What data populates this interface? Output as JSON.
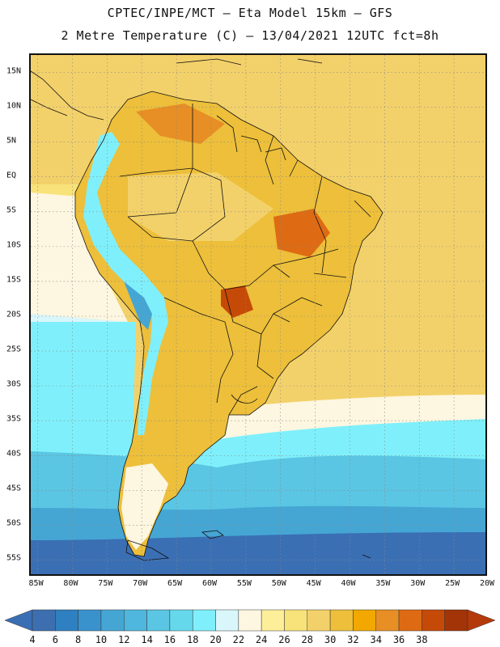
{
  "title": {
    "line1": "CPTEC/INPE/MCT –  Eta Model 15km – GFS",
    "line2": "2 Metre Temperature (C) – 13/04/2021 12UTC fct=8h"
  },
  "lat_labels": [
    "15N",
    "10N",
    "5N",
    "EQ",
    "5S",
    "10S",
    "15S",
    "20S",
    "25S",
    "30S",
    "35S",
    "40S",
    "45S",
    "50S",
    "55S"
  ],
  "lat_values": [
    15,
    10,
    5,
    0,
    -5,
    -10,
    -15,
    -20,
    -25,
    -30,
    -35,
    -40,
    -45,
    -50,
    -55
  ],
  "lon_labels": [
    "85W",
    "80W",
    "75W",
    "70W",
    "65W",
    "60W",
    "55W",
    "50W",
    "45W",
    "40W",
    "35W",
    "30W",
    "25W",
    "20W"
  ],
  "lon_values": [
    -85,
    -80,
    -75,
    -70,
    -65,
    -60,
    -55,
    -50,
    -45,
    -40,
    -35,
    -30,
    -25,
    -20
  ],
  "colorbar": {
    "labels": [
      "4",
      "6",
      "8",
      "10",
      "12",
      "14",
      "16",
      "18",
      "20",
      "22",
      "24",
      "26",
      "28",
      "30",
      "32",
      "34",
      "36",
      "38"
    ],
    "colors": [
      "#3d6fb0",
      "#2f80c0",
      "#3a92cc",
      "#45a6d4",
      "#4fb7dd",
      "#5ac6e3",
      "#66d8ec",
      "#7ff0fb",
      "#d9f7fb",
      "#fdf6e0",
      "#fdef9a",
      "#f8e27a",
      "#f3d16a",
      "#edbf3a",
      "#f2a800",
      "#e78e25",
      "#de6b14",
      "#c64a07",
      "#a23408"
    ],
    "min_color": "#3a6fb4",
    "max_color": "#b53a0a"
  },
  "map": {
    "ocean_colors": {
      "north_atlantic": "#f3d16a",
      "pacific_warm": "#f8e27a",
      "pacific_mild": "#fdf6e0",
      "subtropical": "#d9f7fb",
      "temperate": "#7ff0fb",
      "cool": "#5ac6e3",
      "cold": "#45a6d4",
      "polar": "#3a6fb4"
    },
    "land_colors": {
      "hot": "#de6b14",
      "warm": "#edbf3a",
      "mild": "#f3d16a",
      "highland": "#7ff0fb",
      "cold_highland": "#45a6d4"
    },
    "border_color": "#111111",
    "grid_color": "#888888"
  }
}
